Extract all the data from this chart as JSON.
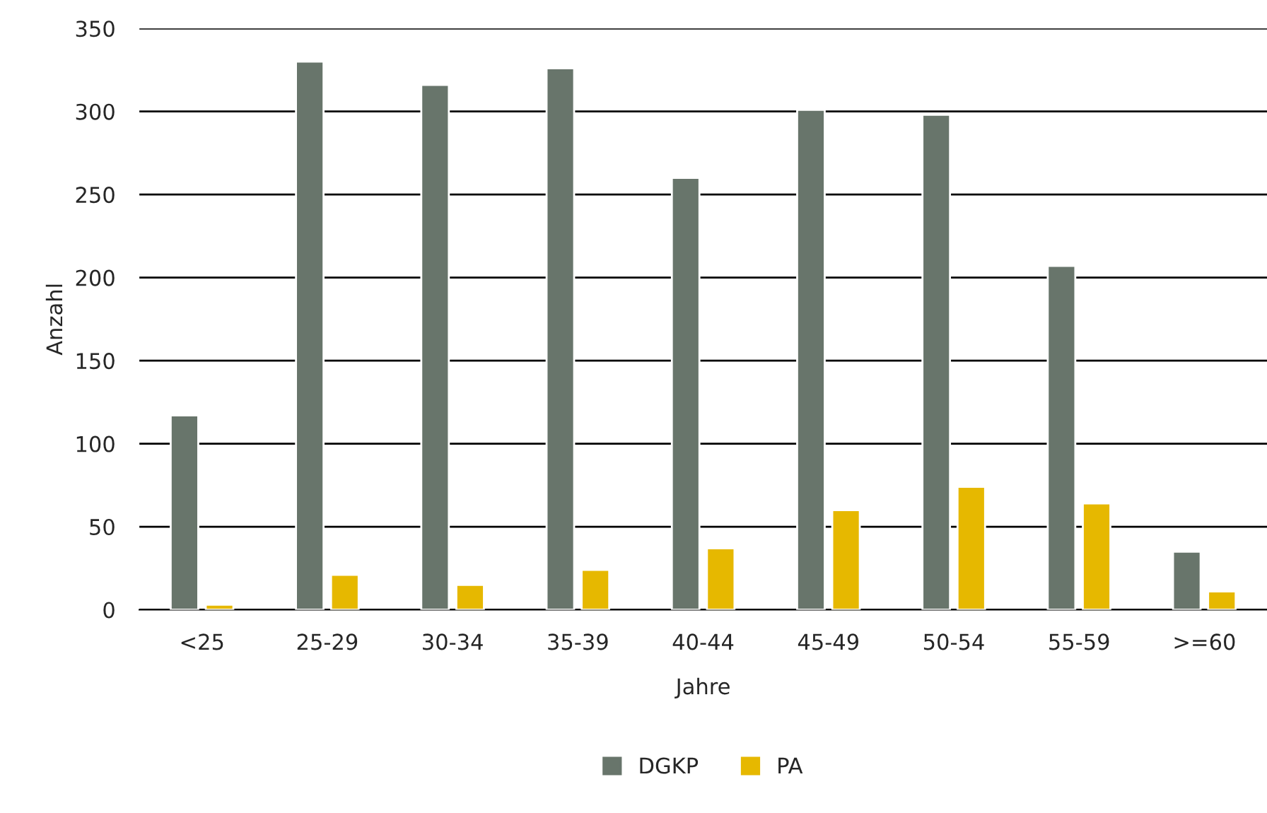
{
  "chart_data": {
    "type": "bar",
    "xlabel": "Jahre",
    "ylabel": "Anzahl",
    "categories": [
      "<25",
      "25-29",
      "30-34",
      "35-39",
      "40-44",
      "45-49",
      "50-54",
      "55-59",
      ">=60"
    ],
    "series": [
      {
        "name": "DGKP",
        "color": "#68756b",
        "values": [
          117,
          330,
          316,
          326,
          260,
          301,
          298,
          207,
          35
        ]
      },
      {
        "name": "PA",
        "color": "#e6b800",
        "values": [
          3,
          21,
          15,
          24,
          37,
          60,
          74,
          64,
          11
        ]
      }
    ],
    "ylim": [
      0,
      350
    ],
    "yticks": [
      0,
      50,
      100,
      150,
      200,
      250,
      300,
      350
    ],
    "grid": "y",
    "legend": "bottom"
  }
}
